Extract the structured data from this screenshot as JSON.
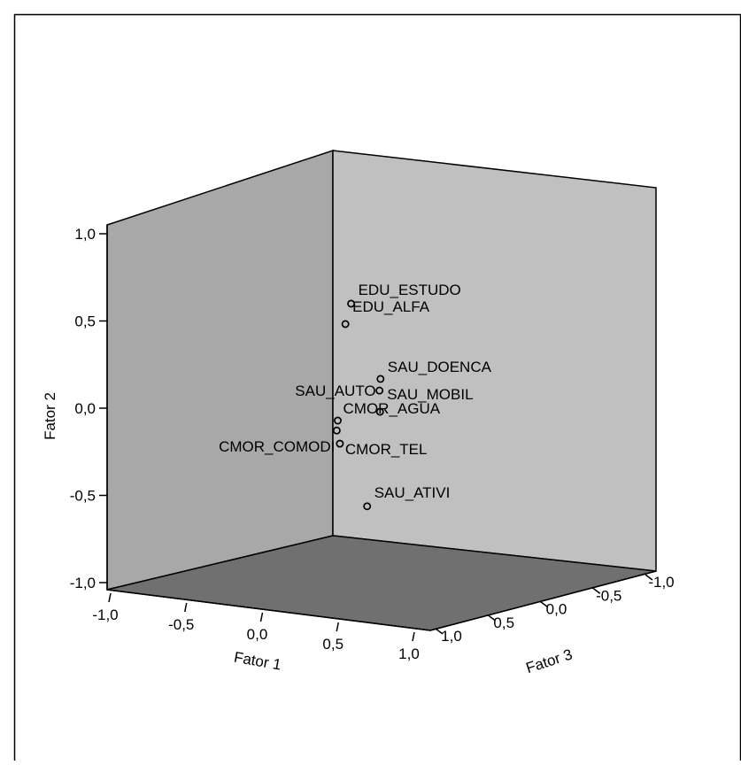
{
  "chart_data": {
    "type": "scatter",
    "subtype": "3d-scatter",
    "title": "",
    "axes": {
      "x": {
        "label": "Fator 1",
        "range": [
          -1.0,
          1.0
        ],
        "ticks": [
          "-1,0",
          "-0,5",
          "0,0",
          "0,5",
          "1,0"
        ]
      },
      "y": {
        "label": "Fator 2",
        "range": [
          -1.0,
          1.0
        ],
        "ticks": [
          "-1,0",
          "-0,5",
          "0,0",
          "0,5",
          "1,0"
        ]
      },
      "z": {
        "label": "Fator 3",
        "range": [
          -1.0,
          1.0
        ],
        "ticks": [
          "1,0",
          "0,5",
          "0,0",
          "-0,5",
          "-1,0"
        ]
      }
    },
    "points": [
      {
        "label": "EDU_ESTUDO",
        "x": 0.4,
        "y": 0.78,
        "z": 0.2
      },
      {
        "label": "EDU_ALFA",
        "x": 0.31,
        "y": 0.65,
        "z": 0.13
      },
      {
        "label": "SAU_DOENCA",
        "x": 0.78,
        "y": 0.4,
        "z": 0.4
      },
      {
        "label": "SAU_AUTO",
        "x": 0.76,
        "y": 0.33,
        "z": 0.38
      },
      {
        "label": "SAU_MOBIL",
        "x": 0.77,
        "y": 0.21,
        "z": 0.39
      },
      {
        "label": "CMOR_AGUA",
        "x": 0.14,
        "y": 0.07,
        "z": -0.06
      },
      {
        "label": "CMOR_TEL",
        "x": 0.16,
        "y": -0.06,
        "z": -0.06
      },
      {
        "label": "CMOR_COMODI",
        "x": 0.12,
        "y": 0.01,
        "z": -0.08
      },
      {
        "label": "SAU_ATIVI",
        "x": 0.68,
        "y": -0.34,
        "z": 0.45
      }
    ],
    "colors": {
      "left_wall": "#a8a8a8",
      "right_wall": "#c0c0c0",
      "floor": "#707070",
      "marker": "#000000"
    }
  }
}
